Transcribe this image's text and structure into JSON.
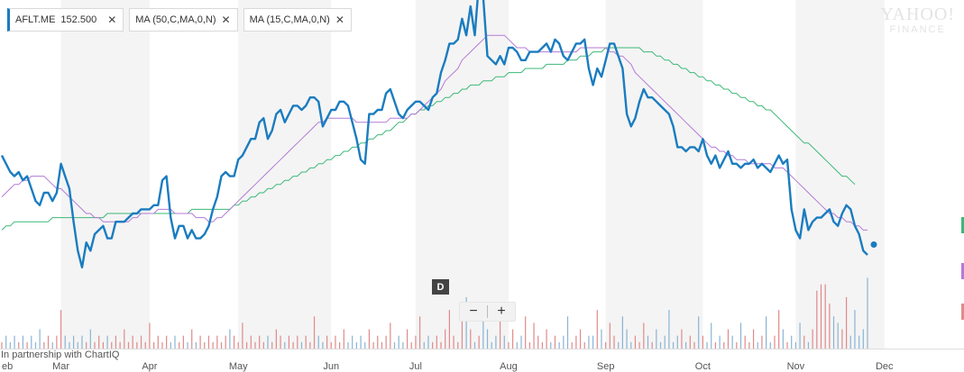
{
  "legend": {
    "symbol": "AFLT.ME",
    "price": "152.500",
    "ma50_label": "MA (50,C,MA,0,N)",
    "ma15_label": "MA (15,C,MA,0,N)",
    "close_glyph": "✕"
  },
  "branding": {
    "line1": "YAHOO!",
    "line2": "FINANCE"
  },
  "controls": {
    "draw_label": "D",
    "zoom_out": "−",
    "zoom_in": "+"
  },
  "footer": {
    "partner_text": "In partnership with ChartIQ"
  },
  "colors": {
    "price": "#1a7cc0",
    "ma50": "#3cb878",
    "ma15": "#b47ad6",
    "vol_up": "#e08a8a",
    "vol_down": "#8ab4d4",
    "cross": "#f08a8a",
    "band": "#f4f4f4",
    "tab_green": "#3cb878",
    "tab_purple": "#b47ad6",
    "tab_red": "#e08a8a"
  },
  "chart_data": {
    "type": "line",
    "title": "",
    "ylim": [
      135,
      205
    ],
    "x_tick_labels": [
      "eb",
      "Mar",
      "Apr",
      "May",
      "Jun",
      "Jul",
      "Aug",
      "Sep",
      "Oct",
      "Nov",
      "Dec"
    ],
    "x_tick_index": [
      0,
      14,
      35,
      56,
      78,
      98,
      120,
      143,
      166,
      188,
      209
    ],
    "grid": "alternating vertical bands",
    "series": [
      {
        "name": "AFLT.ME",
        "values": [
          174,
          172,
          170,
          169,
          170,
          168,
          169,
          166,
          163,
          162,
          165,
          165,
          163,
          165,
          172,
          169,
          166,
          158,
          151,
          147,
          153,
          151,
          155,
          156,
          157,
          154,
          154,
          158,
          158,
          158,
          159,
          160,
          160,
          161,
          161,
          161,
          162,
          162,
          168,
          169,
          159,
          154,
          157,
          157,
          154,
          156,
          154,
          154,
          155,
          157,
          161,
          164,
          169,
          170,
          169,
          169,
          173,
          174,
          176,
          178,
          178,
          182,
          183,
          178,
          180,
          184,
          185,
          182,
          184,
          186,
          186,
          185,
          186,
          188,
          188,
          187,
          181,
          183,
          185,
          185,
          187,
          187,
          186,
          182,
          178,
          173,
          172,
          184,
          184,
          185,
          185,
          189,
          190,
          187,
          184,
          183,
          185,
          186,
          187,
          187,
          186,
          185,
          188,
          189,
          194,
          197,
          201,
          201,
          202,
          207,
          203,
          210,
          203,
          216,
          212,
          198,
          197,
          196,
          198,
          196,
          200,
          200,
          199,
          197,
          197,
          199,
          199,
          199,
          200,
          201,
          199,
          202,
          201,
          198,
          197,
          199,
          201,
          201,
          202,
          195,
          191,
          195,
          193,
          197,
          201,
          201,
          198,
          195,
          184,
          181,
          183,
          187,
          190,
          188,
          188,
          187,
          186,
          185,
          184,
          181,
          176,
          176,
          175,
          176,
          176,
          175,
          178,
          174,
          172,
          174,
          171,
          173,
          175,
          172,
          172,
          171,
          172,
          172,
          173,
          171,
          172,
          171,
          170,
          172,
          174,
          172,
          173,
          161,
          156,
          154,
          161,
          156,
          158,
          159,
          159,
          160,
          161,
          158,
          157,
          160,
          162,
          161,
          157,
          155,
          151,
          150
        ],
        "last_value": 152.5
      },
      {
        "name": "MA (50,C,MA,0,N)",
        "values": [
          156,
          157,
          157,
          158,
          158,
          158,
          158,
          158,
          158,
          158,
          158,
          158,
          159,
          159,
          159,
          159,
          159,
          159,
          159,
          159,
          159,
          159,
          159,
          159,
          159,
          160,
          160,
          160,
          160,
          160,
          160,
          160,
          160,
          160,
          160,
          160,
          160,
          160,
          160,
          160,
          160,
          160,
          160,
          160,
          160,
          161,
          161,
          161,
          161,
          161,
          161,
          161,
          161,
          161,
          161,
          162,
          162,
          163,
          163,
          164,
          164,
          165,
          165,
          166,
          166,
          167,
          167,
          168,
          168,
          169,
          169,
          170,
          170,
          171,
          171,
          172,
          172,
          173,
          173,
          174,
          174,
          175,
          175,
          176,
          176,
          177,
          177,
          178,
          178,
          179,
          179,
          180,
          180,
          181,
          182,
          182,
          183,
          184,
          184,
          185,
          185,
          186,
          186,
          187,
          187,
          188,
          188,
          189,
          189,
          190,
          190,
          191,
          191,
          191,
          192,
          192,
          192,
          193,
          193,
          193,
          194,
          194,
          194,
          194,
          195,
          195,
          195,
          195,
          195,
          196,
          196,
          196,
          196,
          196,
          197,
          197,
          197,
          198,
          198,
          198,
          199,
          199,
          199,
          200,
          200,
          200,
          200,
          200,
          200,
          200,
          200,
          200,
          199,
          199,
          199,
          198,
          198,
          197,
          197,
          196,
          196,
          195,
          195,
          194,
          194,
          193,
          193,
          192,
          192,
          191,
          191,
          190,
          190,
          189,
          189,
          188,
          188,
          187,
          187,
          186,
          186,
          185,
          185,
          184,
          183,
          182,
          181,
          180,
          179,
          178,
          177,
          177,
          176,
          175,
          174,
          173,
          172,
          171,
          170,
          169,
          169,
          168,
          167
        ]
      },
      {
        "name": "MA (15,C,MA,0,N)",
        "values": [
          164,
          165,
          166,
          167,
          167,
          168,
          168,
          169,
          169,
          169,
          169,
          168,
          167,
          166,
          166,
          165,
          164,
          163,
          162,
          161,
          160,
          160,
          159,
          159,
          158,
          158,
          158,
          158,
          158,
          158,
          158,
          159,
          159,
          160,
          160,
          160,
          160,
          161,
          161,
          161,
          161,
          160,
          160,
          160,
          160,
          160,
          159,
          159,
          159,
          158,
          158,
          159,
          159,
          160,
          161,
          162,
          163,
          164,
          165,
          166,
          167,
          168,
          169,
          170,
          171,
          172,
          173,
          174,
          175,
          176,
          177,
          178,
          179,
          180,
          181,
          182,
          182,
          183,
          183,
          183,
          183,
          183,
          183,
          183,
          182,
          182,
          182,
          182,
          182,
          182,
          182,
          182,
          183,
          183,
          183,
          183,
          183,
          184,
          184,
          185,
          186,
          187,
          188,
          189,
          190,
          192,
          193,
          194,
          195,
          197,
          198,
          199,
          200,
          201,
          202,
          203,
          203,
          203,
          203,
          203,
          202,
          201,
          200,
          200,
          200,
          199,
          199,
          199,
          199,
          199,
          199,
          199,
          199,
          199,
          199,
          199,
          199,
          200,
          200,
          200,
          200,
          200,
          200,
          200,
          199,
          199,
          198,
          198,
          197,
          196,
          194,
          193,
          192,
          191,
          190,
          189,
          188,
          187,
          186,
          185,
          184,
          183,
          182,
          181,
          180,
          179,
          178,
          177,
          176,
          176,
          175,
          175,
          174,
          174,
          173,
          173,
          173,
          172,
          172,
          172,
          172,
          172,
          172,
          171,
          171,
          171,
          170,
          169,
          168,
          167,
          166,
          165,
          164,
          163,
          162,
          161,
          160,
          160,
          159,
          159,
          158,
          158,
          157,
          157,
          156,
          156
        ]
      }
    ],
    "volume": {
      "name": "Volume",
      "values": [
        1,
        2,
        1,
        2,
        1,
        2,
        1,
        2,
        1,
        3,
        1,
        2,
        1,
        2,
        6,
        2,
        1,
        2,
        1,
        2,
        1,
        3,
        1,
        2,
        1,
        2,
        1,
        2,
        1,
        3,
        1,
        2,
        1,
        2,
        1,
        4,
        1,
        2,
        1,
        2,
        1,
        2,
        1,
        2,
        1,
        3,
        1,
        2,
        1,
        2,
        1,
        2,
        1,
        2,
        3,
        2,
        1,
        4,
        1,
        2,
        1,
        2,
        1,
        2,
        1,
        3,
        2,
        1,
        2,
        1,
        2,
        1,
        2,
        1,
        5,
        2,
        1,
        2,
        1,
        2,
        1,
        3,
        1,
        2,
        1,
        2,
        1,
        3,
        1,
        2,
        1,
        2,
        4,
        1,
        2,
        1,
        3,
        1,
        2,
        5,
        1,
        2,
        1,
        2,
        1,
        3,
        6,
        2,
        1,
        7,
        8,
        3,
        1,
        2,
        5,
        3,
        1,
        2,
        6,
        2,
        1,
        3,
        1,
        2,
        5,
        1,
        4,
        2,
        1,
        3,
        1,
        2,
        1,
        2,
        5,
        1,
        2,
        3,
        1,
        2,
        2,
        6,
        3,
        1,
        4,
        2,
        1,
        5,
        3,
        1,
        2,
        1,
        4,
        2,
        1,
        3,
        1,
        2,
        6,
        1,
        2,
        3,
        1,
        2,
        1,
        5,
        2,
        1,
        4,
        1,
        2,
        1,
        3,
        2,
        1,
        4,
        2,
        1,
        3,
        1,
        2,
        5,
        1,
        2,
        6,
        3,
        1,
        2,
        1,
        4,
        2,
        1,
        3,
        9,
        10,
        10,
        7,
        5,
        4,
        3,
        8,
        2,
        6,
        2,
        3,
        11,
        14,
        12,
        10
      ]
    }
  }
}
